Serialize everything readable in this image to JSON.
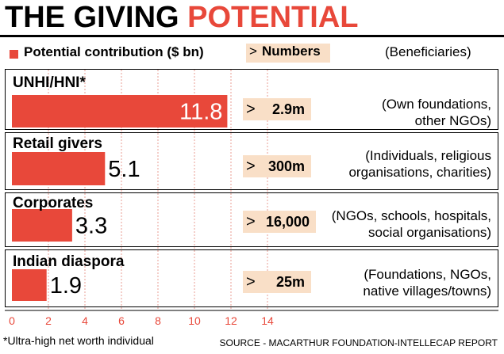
{
  "title_part1": "THE GIVING ",
  "title_part2": "POTENTIAL",
  "legend": {
    "contribution": "Potential contribution ($ bn)",
    "numbers_arrow": ">",
    "numbers": "Numbers",
    "beneficiaries": "(Beneficiaries)"
  },
  "rows": [
    {
      "label": "UNHI/HNI*",
      "arrow": ">",
      "number": "2.9m",
      "beneficiaries_line1": "(Own foundations,",
      "beneficiaries_line2": "other NGOs)"
    },
    {
      "label": "Retail givers",
      "arrow": ">",
      "number": "300m",
      "beneficiaries_line1": "(Individuals, religious",
      "beneficiaries_line2": "organisations, charities)"
    },
    {
      "label": "Corporates",
      "arrow": ">",
      "number": "16,000",
      "beneficiaries_line1": "(NGOs, schools, hospitals,",
      "beneficiaries_line2": "social organisations)"
    },
    {
      "label": "Indian diaspora",
      "arrow": ">",
      "number": "25m",
      "beneficiaries_line1": "(Foundations, NGOs,",
      "beneficiaries_line2": "native villages/towns)"
    }
  ],
  "footnote": "*Ultra-high net worth individual",
  "source": "SOURCE - MACARTHUR FOUNDATION-INTELLECAP REPORT",
  "colors": {
    "bar": "#e8483a",
    "highlight": "#f9dfc7",
    "tick": "#e8483a"
  },
  "chart_data": {
    "type": "bar",
    "orientation": "horizontal",
    "categories": [
      "UNHI/HNI*",
      "Retail givers",
      "Corporates",
      "Indian diaspora"
    ],
    "values": [
      11.8,
      5.1,
      3.3,
      1.9
    ],
    "value_labels": [
      "11.8",
      "5.1",
      "3.3",
      "1.9"
    ],
    "xlim": [
      0,
      14
    ],
    "xticks": [
      0,
      2,
      4,
      6,
      8,
      10,
      12,
      14
    ],
    "xtick_labels": [
      "0",
      "2",
      "4",
      "6",
      "8",
      "10",
      "12",
      "14"
    ],
    "grid": "vertical dashed",
    "legend": "top-left"
  }
}
